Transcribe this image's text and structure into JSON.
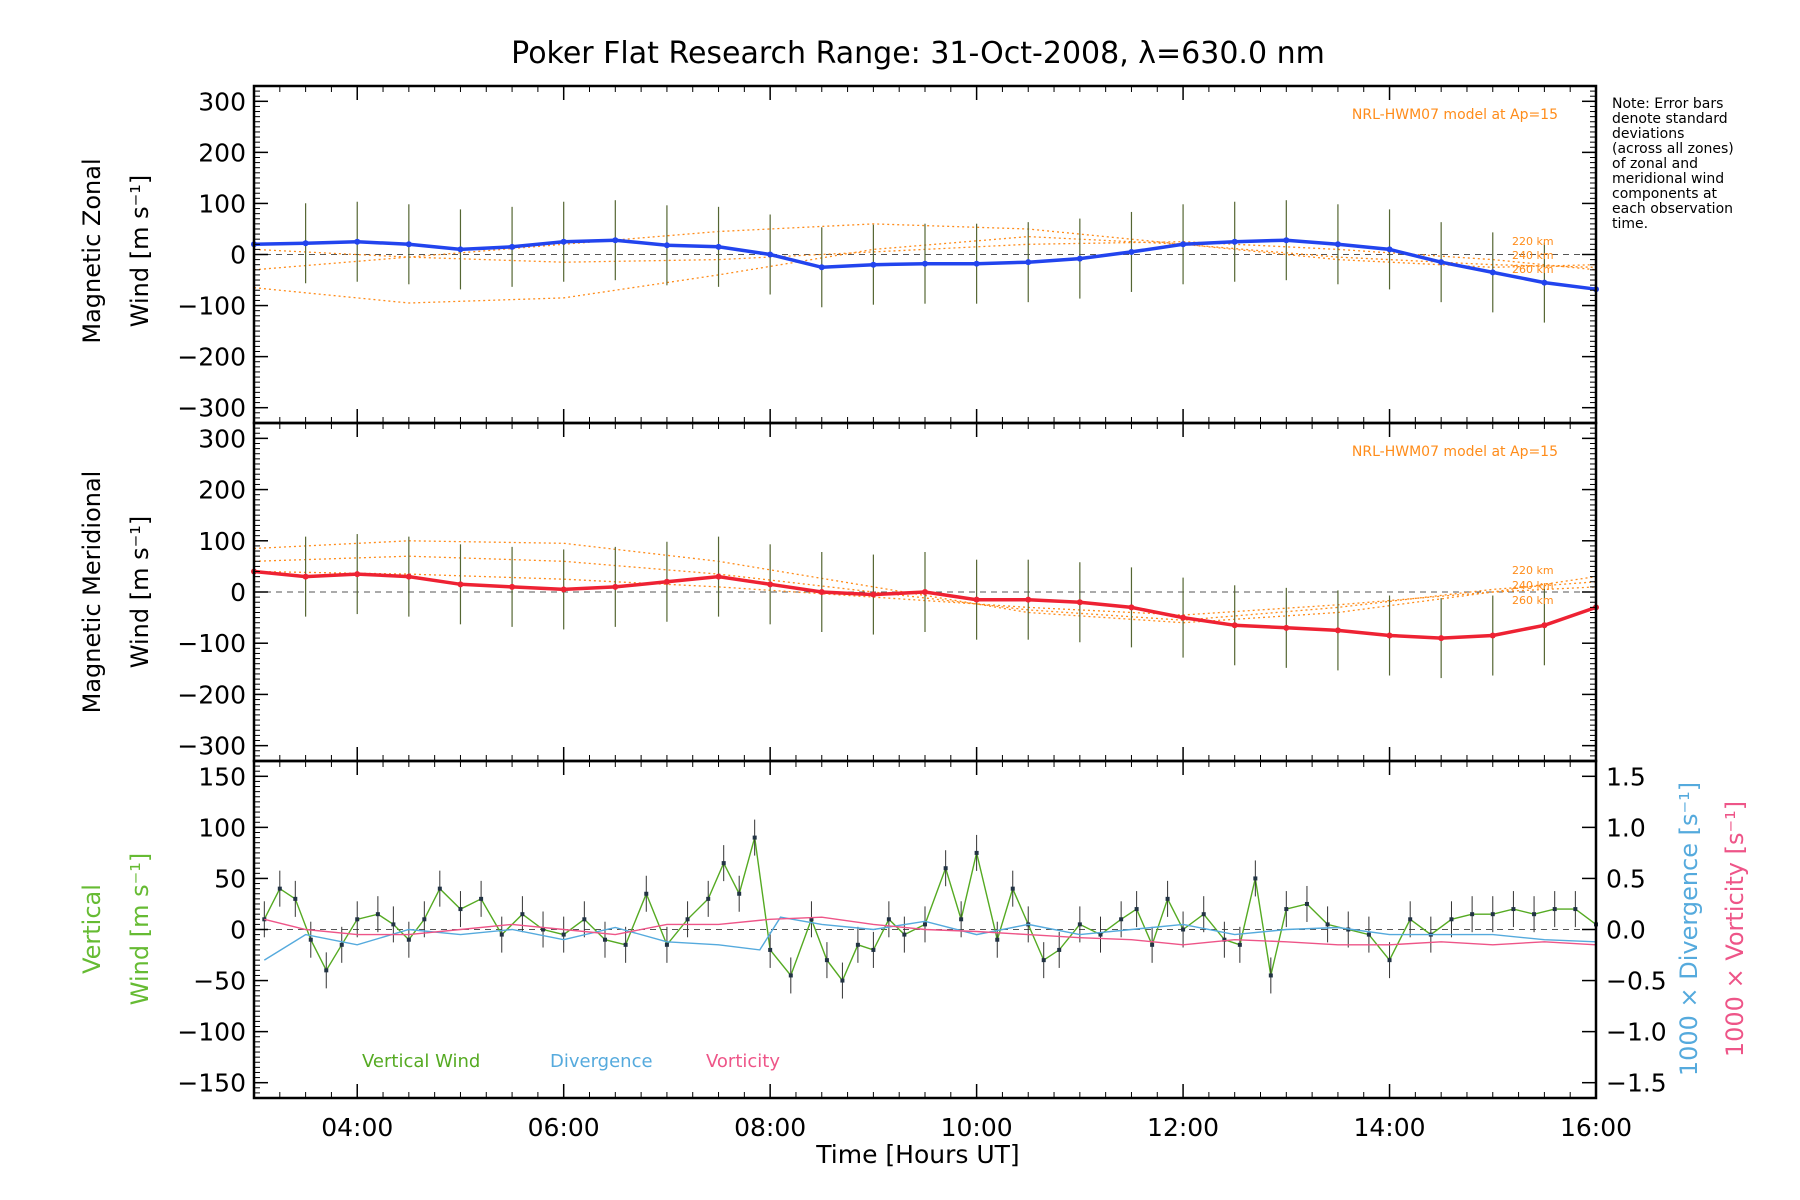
{
  "chart_data": {
    "type": "line",
    "title": "Poker Flat Research Range: 31-Oct-2008, λ=630.0 nm",
    "xlabel": "Time [Hours UT]",
    "xlim": [
      3.0,
      16.0
    ],
    "x_ticks": [
      "04:00",
      "06:00",
      "08:00",
      "10:00",
      "12:00",
      "14:00",
      "16:00"
    ],
    "note": [
      "Note: Error bars",
      "denote standard",
      "deviations",
      "(across all zones)",
      "of zonal and",
      "meridional wind",
      "components at",
      "each observation",
      "time."
    ],
    "panels": [
      {
        "name": "zonal",
        "ylabel_line1": "Magnetic Zonal",
        "ylabel_line2": "Wind [m s⁻¹]",
        "ylim": [
          -330,
          330
        ],
        "y_ticks": [
          300,
          200,
          100,
          0,
          -100,
          -200,
          -300
        ],
        "model_label": "NRL-HWM07 model at Ap=15",
        "altitude_labels": [
          "220 km",
          "240 km",
          "260 km"
        ],
        "series": [
          {
            "name": "zonal wind",
            "x": [
              3.0,
              3.5,
              4.0,
              4.5,
              5.0,
              5.5,
              6.0,
              6.5,
              7.0,
              7.5,
              8.0,
              8.5,
              9.0,
              9.5,
              10.0,
              10.5,
              11.0,
              11.5,
              12.0,
              12.5,
              13.0,
              13.5,
              14.0,
              14.5,
              15.0,
              15.5,
              16.0
            ],
            "y": [
              20,
              22,
              25,
              20,
              10,
              15,
              25,
              28,
              18,
              15,
              0,
              -25,
              -20,
              -18,
              -18,
              -15,
              -8,
              5,
              20,
              25,
              28,
              20,
              10,
              -15,
              -35,
              -55,
              -68
            ]
          }
        ],
        "model_curves": [
          {
            "x": [
              3.0,
              4.5,
              6.0,
              7.5,
              9.0,
              10.5,
              12.0,
              13.5,
              15.0,
              16.0
            ],
            "y": [
              10,
              -5,
              -15,
              -10,
              5,
              20,
              25,
              10,
              -10,
              -30
            ]
          },
          {
            "x": [
              3.0,
              4.5,
              6.0,
              7.5,
              9.0,
              10.5,
              12.0,
              13.5,
              15.0,
              16.0
            ],
            "y": [
              -30,
              -5,
              20,
              45,
              60,
              50,
              20,
              -5,
              -20,
              -25
            ]
          },
          {
            "x": [
              3.0,
              4.5,
              6.0,
              7.5,
              9.0,
              10.5,
              12.0,
              13.5,
              15.0,
              16.0
            ],
            "y": [
              -65,
              -95,
              -85,
              -40,
              10,
              35,
              20,
              -10,
              -25,
              -20
            ]
          }
        ]
      },
      {
        "name": "meridional",
        "ylabel_line1": "Magnetic Meridional",
        "ylabel_line2": "Wind [m s⁻¹]",
        "ylim": [
          -330,
          330
        ],
        "y_ticks": [
          300,
          200,
          100,
          0,
          -100,
          -200,
          -300
        ],
        "model_label": "NRL-HWM07 model at Ap=15",
        "altitude_labels": [
          "220 km",
          "240 km",
          "260 km"
        ],
        "series": [
          {
            "name": "meridional wind",
            "x": [
              3.0,
              3.5,
              4.0,
              4.5,
              5.0,
              5.5,
              6.0,
              6.5,
              7.0,
              7.5,
              8.0,
              8.5,
              9.0,
              9.5,
              10.0,
              10.5,
              11.0,
              11.5,
              12.0,
              12.5,
              13.0,
              13.5,
              14.0,
              14.5,
              15.0,
              15.5,
              16.0
            ],
            "y": [
              40,
              30,
              35,
              30,
              15,
              10,
              5,
              10,
              20,
              30,
              15,
              0,
              -5,
              0,
              -15,
              -15,
              -20,
              -30,
              -50,
              -65,
              -70,
              -75,
              -85,
              -90,
              -85,
              -65,
              -30
            ]
          }
        ],
        "model_curves": [
          {
            "x": [
              3.0,
              4.5,
              6.0,
              7.5,
              9.0,
              10.5,
              12.0,
              13.5,
              15.0,
              16.0
            ],
            "y": [
              85,
              100,
              95,
              60,
              10,
              -40,
              -60,
              -40,
              0,
              30
            ]
          },
          {
            "x": [
              3.0,
              4.5,
              6.0,
              7.5,
              9.0,
              10.5,
              12.0,
              13.5,
              15.0,
              16.0
            ],
            "y": [
              60,
              70,
              60,
              35,
              0,
              -35,
              -55,
              -30,
              5,
              20
            ]
          },
          {
            "x": [
              3.0,
              4.5,
              6.0,
              7.5,
              9.0,
              10.5,
              12.0,
              13.5,
              15.0,
              16.0
            ],
            "y": [
              40,
              35,
              25,
              10,
              -10,
              -30,
              -45,
              -25,
              0,
              10
            ]
          }
        ]
      },
      {
        "name": "vertical",
        "ylabel_line1": "Vertical",
        "ylabel_line2": "Wind [m s⁻¹]",
        "ylim": [
          -165,
          165
        ],
        "y_ticks": [
          150,
          100,
          50,
          0,
          -50,
          -100,
          -150
        ],
        "y2lim": [
          -1.65,
          1.65
        ],
        "y2_ticks": [
          1.5,
          1.0,
          0.5,
          0.0,
          -0.5,
          -1.0,
          -1.5
        ],
        "y2_ticklabels": [
          "1.5",
          "1.0",
          "0.5",
          "0.0",
          "−0.5",
          "−1.0",
          "−1.5"
        ],
        "y2label_div": "1000 × Divergence [s⁻¹]",
        "y2label_vort": "1000 × Vorticity [s⁻¹]",
        "legend": [
          "Vertical Wind",
          "Divergence",
          "Vorticity"
        ],
        "series": [
          {
            "name": "Vertical Wind",
            "x": [
              3.1,
              3.25,
              3.4,
              3.55,
              3.7,
              3.85,
              4.0,
              4.2,
              4.35,
              4.5,
              4.65,
              4.8,
              5.0,
              5.2,
              5.4,
              5.6,
              5.8,
              6.0,
              6.2,
              6.4,
              6.6,
              6.8,
              7.0,
              7.2,
              7.4,
              7.55,
              7.7,
              7.85,
              8.0,
              8.2,
              8.4,
              8.55,
              8.7,
              8.85,
              9.0,
              9.15,
              9.3,
              9.5,
              9.7,
              9.85,
              10.0,
              10.2,
              10.35,
              10.5,
              10.65,
              10.8,
              11.0,
              11.2,
              11.4,
              11.55,
              11.7,
              11.85,
              12.0,
              12.2,
              12.4,
              12.55,
              12.7,
              12.85,
              13.0,
              13.2,
              13.4,
              13.6,
              13.8,
              14.0,
              14.2,
              14.4,
              14.6,
              14.8,
              15.0,
              15.2,
              15.4,
              15.6,
              15.8,
              16.0
            ],
            "y": [
              10,
              40,
              30,
              -10,
              -40,
              -15,
              10,
              15,
              5,
              -10,
              10,
              40,
              20,
              30,
              -5,
              15,
              0,
              -5,
              10,
              -10,
              -15,
              35,
              -15,
              10,
              30,
              65,
              35,
              90,
              -20,
              -45,
              10,
              -30,
              -50,
              -15,
              -20,
              10,
              -5,
              5,
              60,
              10,
              75,
              -10,
              40,
              5,
              -30,
              -20,
              5,
              -5,
              10,
              20,
              -15,
              30,
              0,
              15,
              -10,
              -15,
              50,
              -45,
              20,
              25,
              5,
              0,
              -5,
              -30,
              10,
              -5,
              10,
              15,
              15,
              20,
              15,
              20,
              20,
              5
            ]
          },
          {
            "name": "Divergence",
            "x": [
              3.1,
              3.5,
              4.0,
              4.5,
              5.0,
              5.5,
              6.0,
              6.5,
              7.0,
              7.5,
              7.9,
              8.1,
              8.5,
              9.0,
              9.5,
              10.0,
              10.5,
              11.0,
              11.5,
              12.0,
              12.5,
              13.0,
              13.5,
              14.0,
              14.5,
              15.0,
              15.5,
              16.0
            ],
            "y": [
              -0.3,
              -0.05,
              -0.15,
              0.0,
              -0.05,
              0.0,
              -0.1,
              0.02,
              -0.12,
              -0.15,
              -0.2,
              0.12,
              0.05,
              0.0,
              0.08,
              -0.05,
              0.05,
              -0.05,
              0.0,
              0.05,
              -0.05,
              0.0,
              0.02,
              -0.05,
              -0.05,
              -0.05,
              -0.1,
              -0.12
            ]
          },
          {
            "name": "Vorticity",
            "x": [
              3.1,
              3.5,
              4.0,
              4.5,
              5.0,
              5.5,
              6.0,
              6.5,
              7.0,
              7.5,
              8.0,
              8.5,
              9.0,
              9.5,
              10.0,
              10.5,
              11.0,
              11.5,
              12.0,
              12.5,
              13.0,
              13.5,
              14.0,
              14.5,
              15.0,
              15.5,
              16.0
            ],
            "y": [
              0.1,
              0.0,
              -0.05,
              -0.05,
              0.0,
              0.05,
              0.0,
              -0.05,
              0.05,
              0.05,
              0.1,
              0.12,
              0.05,
              0.0,
              -0.02,
              -0.05,
              -0.08,
              -0.1,
              -0.15,
              -0.1,
              -0.12,
              -0.15,
              -0.15,
              -0.12,
              -0.15,
              -0.12,
              -0.15
            ]
          }
        ]
      }
    ]
  }
}
